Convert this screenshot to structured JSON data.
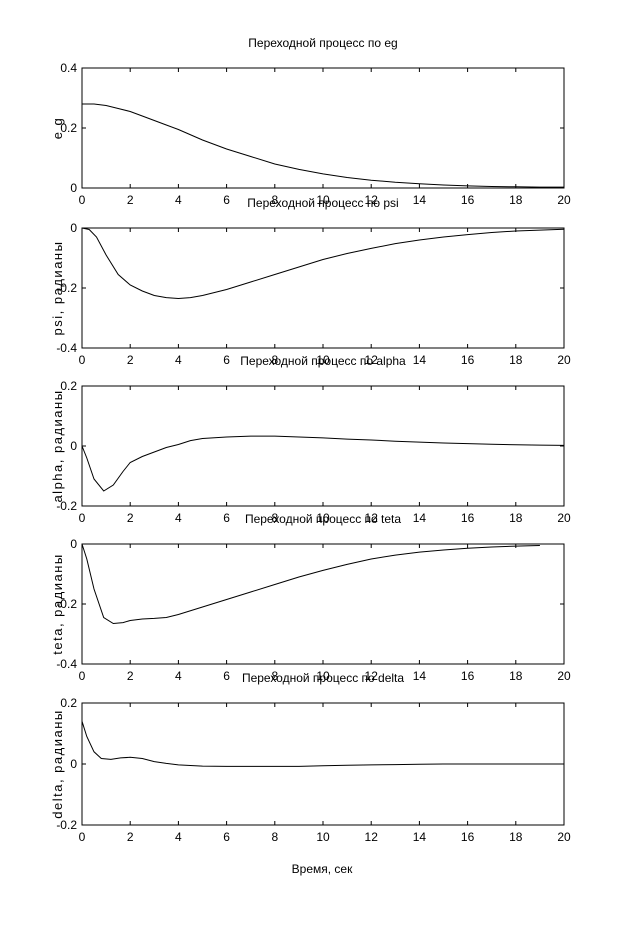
{
  "figure": {
    "xlabel": "Время, сек"
  },
  "chart_data": [
    {
      "type": "line",
      "title": "Переходной процесс по eg",
      "xlabel": "",
      "ylabel": "e g",
      "xlim": [
        0,
        20
      ],
      "ylim": [
        0,
        0.4
      ],
      "xticks": [
        "0",
        "2",
        "4",
        "6",
        "8",
        "10",
        "12",
        "14",
        "16",
        "18",
        "20"
      ],
      "yticks": [
        "0",
        "0.2",
        "0.4"
      ],
      "grid": false,
      "series": [
        {
          "x": [
            0,
            0.5,
            1,
            1.5,
            2,
            2.5,
            3,
            3.5,
            4,
            5,
            6,
            7,
            8,
            9,
            10,
            11,
            12,
            13,
            14,
            15,
            16,
            17,
            18,
            19,
            20
          ],
          "y": [
            0.28,
            0.28,
            0.275,
            0.265,
            0.255,
            0.24,
            0.225,
            0.21,
            0.195,
            0.16,
            0.13,
            0.105,
            0.08,
            0.062,
            0.047,
            0.035,
            0.026,
            0.019,
            0.014,
            0.01,
            0.007,
            0.005,
            0.004,
            0.003,
            0.003
          ]
        }
      ]
    },
    {
      "type": "line",
      "title": "Переходной процесс по psi",
      "xlabel": "",
      "ylabel": "psi, радианы",
      "xlim": [
        0,
        20
      ],
      "ylim": [
        -0.4,
        0
      ],
      "xticks": [
        "0",
        "2",
        "4",
        "6",
        "8",
        "10",
        "12",
        "14",
        "16",
        "18",
        "20"
      ],
      "yticks": [
        "0",
        "-0.2",
        "-0.4"
      ],
      "grid": false,
      "series": [
        {
          "x": [
            0,
            0.3,
            0.6,
            1,
            1.5,
            2,
            2.5,
            3,
            3.5,
            4,
            4.5,
            5,
            6,
            7,
            8,
            9,
            10,
            11,
            12,
            13,
            14,
            15,
            16,
            17,
            18,
            19,
            20
          ],
          "y": [
            0,
            -0.005,
            -0.03,
            -0.09,
            -0.155,
            -0.19,
            -0.21,
            -0.225,
            -0.232,
            -0.235,
            -0.232,
            -0.225,
            -0.205,
            -0.18,
            -0.155,
            -0.13,
            -0.105,
            -0.085,
            -0.068,
            -0.052,
            -0.04,
            -0.03,
            -0.022,
            -0.015,
            -0.01,
            -0.007,
            -0.004
          ]
        }
      ]
    },
    {
      "type": "line",
      "title": "Переходной процесс по alpha",
      "xlabel": "",
      "ylabel": "alpha, радианы",
      "xlim": [
        0,
        20
      ],
      "ylim": [
        -0.2,
        0.2
      ],
      "xticks": [
        "0",
        "2",
        "4",
        "6",
        "8",
        "10",
        "12",
        "14",
        "16",
        "18",
        "20"
      ],
      "yticks": [
        "0.2",
        "0",
        "-0.2"
      ],
      "grid": false,
      "series": [
        {
          "x": [
            0,
            0.2,
            0.5,
            0.9,
            1.3,
            1.7,
            2,
            2.5,
            3,
            3.5,
            4,
            4.5,
            5,
            6,
            7,
            8,
            9,
            10,
            11,
            12,
            13,
            14,
            15,
            16,
            17,
            18,
            19,
            20
          ],
          "y": [
            0,
            -0.04,
            -0.11,
            -0.15,
            -0.13,
            -0.085,
            -0.055,
            -0.035,
            -0.02,
            -0.005,
            0.005,
            0.018,
            0.025,
            0.03,
            0.033,
            0.033,
            0.03,
            0.027,
            0.023,
            0.02,
            0.016,
            0.013,
            0.01,
            0.008,
            0.006,
            0.004,
            0.003,
            0.002
          ]
        }
      ]
    },
    {
      "type": "line",
      "title": "Переходной процесс по teta",
      "xlabel": "",
      "ylabel": "teta, радианы",
      "xlim": [
        0,
        20
      ],
      "ylim": [
        -0.4,
        0
      ],
      "xticks": [
        "0",
        "2",
        "4",
        "6",
        "8",
        "10",
        "12",
        "14",
        "16",
        "18",
        "20"
      ],
      "yticks": [
        "0",
        "-0.2",
        "-0.4"
      ],
      "grid": false,
      "series": [
        {
          "x": [
            0,
            0.2,
            0.5,
            0.9,
            1.3,
            1.7,
            2,
            2.5,
            3,
            3.5,
            4,
            5,
            6,
            7,
            8,
            9,
            10,
            11,
            12,
            13,
            14,
            15,
            16,
            17,
            18,
            19
          ],
          "y": [
            0,
            -0.05,
            -0.15,
            -0.245,
            -0.265,
            -0.262,
            -0.255,
            -0.25,
            -0.248,
            -0.245,
            -0.235,
            -0.21,
            -0.185,
            -0.16,
            -0.135,
            -0.11,
            -0.088,
            -0.068,
            -0.05,
            -0.037,
            -0.027,
            -0.02,
            -0.014,
            -0.01,
            -0.007,
            -0.005
          ]
        }
      ]
    },
    {
      "type": "line",
      "title": "Переходной процесс по delta",
      "xlabel": "Время, сек",
      "ylabel": "delta, радианы",
      "xlim": [
        0,
        20
      ],
      "ylim": [
        -0.2,
        0.2
      ],
      "xticks": [
        "0",
        "2",
        "4",
        "6",
        "8",
        "10",
        "12",
        "14",
        "16",
        "18",
        "20"
      ],
      "yticks": [
        "0.2",
        "0",
        "-0.2"
      ],
      "grid": false,
      "series": [
        {
          "x": [
            0,
            0.2,
            0.5,
            0.8,
            1.2,
            1.6,
            2,
            2.5,
            3,
            3.5,
            4,
            5,
            6,
            7,
            8,
            9,
            10,
            11,
            12,
            13,
            14,
            15,
            16,
            17,
            18,
            19,
            20
          ],
          "y": [
            0.14,
            0.09,
            0.04,
            0.018,
            0.015,
            0.02,
            0.022,
            0.018,
            0.008,
            0.002,
            -0.003,
            -0.007,
            -0.008,
            -0.008,
            -0.008,
            -0.008,
            -0.006,
            -0.004,
            -0.003,
            -0.002,
            -0.001,
            0,
            0,
            0,
            0,
            0,
            0
          ]
        }
      ]
    }
  ]
}
